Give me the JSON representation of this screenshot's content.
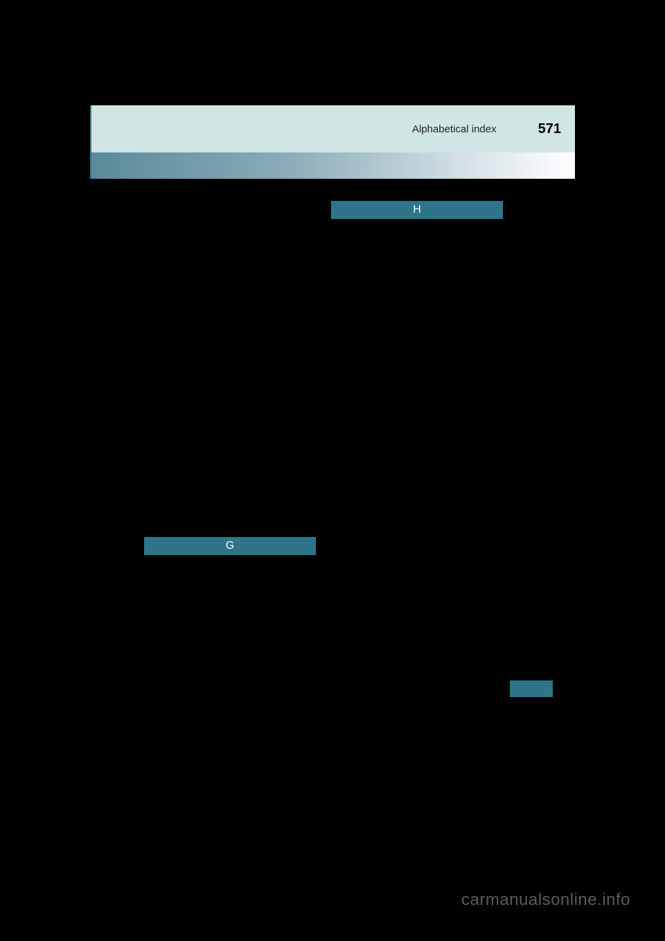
{
  "header": {
    "title": "Alphabetical index",
    "page_number": "571"
  },
  "tabs": {
    "h_label": "H",
    "g_label": "G"
  },
  "watermark": "carmanualsonline.info",
  "colors": {
    "background": "#000000",
    "header_bg": "#d1e5e5",
    "tab_bg": "#2f758a",
    "tab_text": "#ffffff",
    "gradient_start": "#5a8a9a",
    "gradient_end": "#ffffff",
    "border_accent": "#3a7a8a",
    "watermark_color": "#5a5a5a"
  }
}
